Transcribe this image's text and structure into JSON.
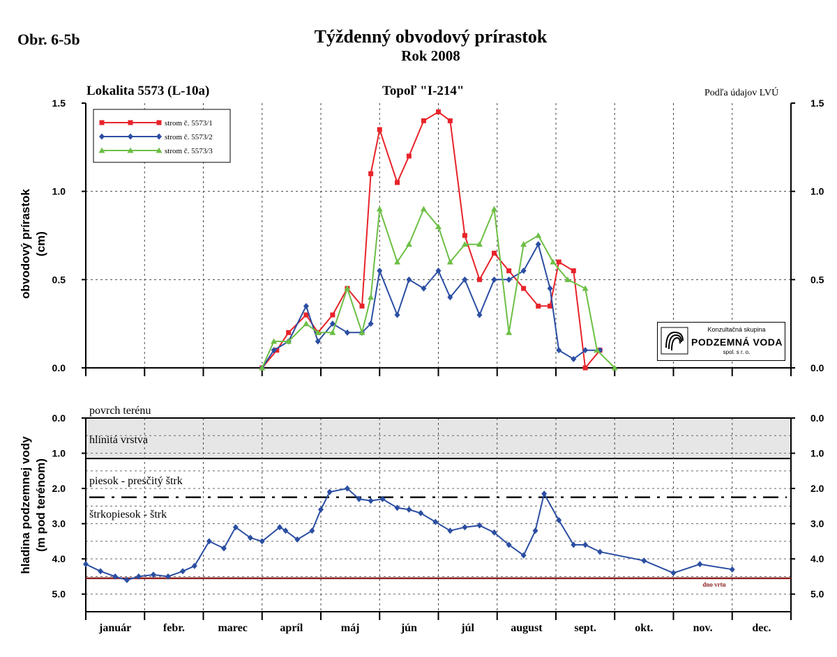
{
  "figure_label": "Obr. 6-5b",
  "title": "Týždenný obvodový prírastok",
  "subtitle": "Rok 2008",
  "location": "Lokalita 5573 (L-10a)",
  "tree_type": "Topoľ \"I-214\"",
  "source_note": "Podľa údajov LVÚ",
  "logo": {
    "line1": "Konzultačná skupina",
    "line2": "PODZEMNÁ VODA",
    "line3": "spol. s r. o."
  },
  "colors": {
    "red": "#e8232a",
    "blue": "#2b4ea2",
    "green": "#6cbf45",
    "bottom_line": "#8b1c1c",
    "soil": "#e6e6e6"
  },
  "chart_data": [
    {
      "type": "line",
      "ylabel": "obvodový prírastok",
      "yunit": "(cm)",
      "ylim": [
        0,
        1.5
      ],
      "yticks": [
        "0.0",
        "0.5",
        "1.0",
        "1.5"
      ],
      "xlim": [
        0,
        12
      ],
      "months": [
        "január",
        "febr.",
        "marec",
        "apríl",
        "máj",
        "jún",
        "júl",
        "august",
        "sept.",
        "okt.",
        "nov.",
        "dec."
      ],
      "grid": true,
      "legend_position": "top-left",
      "series": [
        {
          "name": "strom č. 5573/1",
          "color": "#e8232a",
          "marker": "square",
          "x": [
            3.0,
            3.25,
            3.45,
            3.75,
            3.95,
            4.2,
            4.45,
            4.7,
            4.85,
            5.0,
            5.3,
            5.5,
            5.75,
            6.0,
            6.2,
            6.45,
            6.7,
            6.95,
            7.2,
            7.45,
            7.7,
            7.9,
            8.05,
            8.3,
            8.5,
            8.75
          ],
          "y": [
            0.0,
            0.1,
            0.2,
            0.3,
            0.2,
            0.3,
            0.45,
            0.35,
            1.1,
            1.35,
            1.05,
            1.2,
            1.4,
            1.45,
            1.4,
            0.75,
            0.5,
            0.65,
            0.55,
            0.45,
            0.35,
            0.35,
            0.6,
            0.55,
            0.0,
            0.1
          ]
        },
        {
          "name": "strom č. 5573/2",
          "color": "#2b4ea2",
          "marker": "diamond",
          "x": [
            3.0,
            3.2,
            3.45,
            3.75,
            3.95,
            4.2,
            4.45,
            4.7,
            4.85,
            5.0,
            5.3,
            5.5,
            5.75,
            6.0,
            6.2,
            6.45,
            6.7,
            6.95,
            7.2,
            7.45,
            7.7,
            7.9,
            8.05,
            8.3,
            8.5,
            8.75
          ],
          "y": [
            0.0,
            0.1,
            0.15,
            0.35,
            0.15,
            0.25,
            0.2,
            0.2,
            0.25,
            0.55,
            0.3,
            0.5,
            0.45,
            0.55,
            0.4,
            0.5,
            0.3,
            0.5,
            0.5,
            0.55,
            0.7,
            0.45,
            0.1,
            0.05,
            0.1,
            0.1
          ]
        },
        {
          "name": "strom č. 5573/3",
          "color": "#6cbf45",
          "marker": "triangle",
          "x": [
            3.0,
            3.2,
            3.45,
            3.75,
            3.95,
            4.2,
            4.45,
            4.7,
            4.85,
            5.0,
            5.3,
            5.5,
            5.75,
            6.0,
            6.2,
            6.45,
            6.7,
            6.95,
            7.2,
            7.45,
            7.7,
            7.95,
            8.2,
            8.5,
            8.7,
            9.0
          ],
          "y": [
            0.0,
            0.15,
            0.15,
            0.25,
            0.2,
            0.2,
            0.45,
            0.2,
            0.4,
            0.9,
            0.6,
            0.7,
            0.9,
            0.8,
            0.6,
            0.7,
            0.7,
            0.9,
            0.2,
            0.7,
            0.75,
            0.6,
            0.5,
            0.45,
            0.1,
            0.0
          ]
        }
      ]
    },
    {
      "type": "line",
      "ylabel": "hladina podzemnej vody",
      "yunit": "(m pod terénom)",
      "ylim": [
        0,
        5.5
      ],
      "y_inverted": true,
      "yticks": [
        "0.0",
        "1.0",
        "2.0",
        "3.0",
        "4.0",
        "5.0"
      ],
      "xlim": [
        0,
        12
      ],
      "grid": true,
      "layers": {
        "surface": "povrch terénu",
        "clay": "hlinitá vrstva",
        "clay_depth": 1.15,
        "sand": "piesok - presčitý štrk",
        "gravel": "štrkopiesok - štrk",
        "dash_depth": 2.25,
        "bottom": "dno vrtu",
        "bottom_depth": 4.55
      },
      "series": [
        {
          "name": "",
          "color": "#2b4ea2",
          "marker": "diamond",
          "x": [
            0.0,
            0.25,
            0.5,
            0.7,
            0.9,
            1.15,
            1.4,
            1.65,
            1.85,
            2.1,
            2.35,
            2.55,
            2.8,
            3.0,
            3.3,
            3.4,
            3.6,
            3.85,
            4.0,
            4.15,
            4.45,
            4.65,
            4.85,
            5.05,
            5.3,
            5.5,
            5.7,
            5.95,
            6.2,
            6.45,
            6.7,
            6.95,
            7.2,
            7.45,
            7.65,
            7.8,
            8.05,
            8.3,
            8.5,
            8.75,
            9.5,
            10.0,
            10.45,
            11.0
          ],
          "y": [
            4.15,
            4.35,
            4.5,
            4.6,
            4.5,
            4.45,
            4.5,
            4.35,
            4.2,
            3.5,
            3.7,
            3.1,
            3.4,
            3.5,
            3.1,
            3.2,
            3.45,
            3.2,
            2.6,
            2.1,
            2.0,
            2.3,
            2.35,
            2.3,
            2.55,
            2.6,
            2.7,
            2.95,
            3.2,
            3.1,
            3.05,
            3.25,
            3.6,
            3.9,
            3.2,
            2.15,
            2.9,
            3.6,
            3.6,
            3.8,
            4.05,
            4.4,
            4.15,
            4.3
          ]
        }
      ]
    }
  ]
}
